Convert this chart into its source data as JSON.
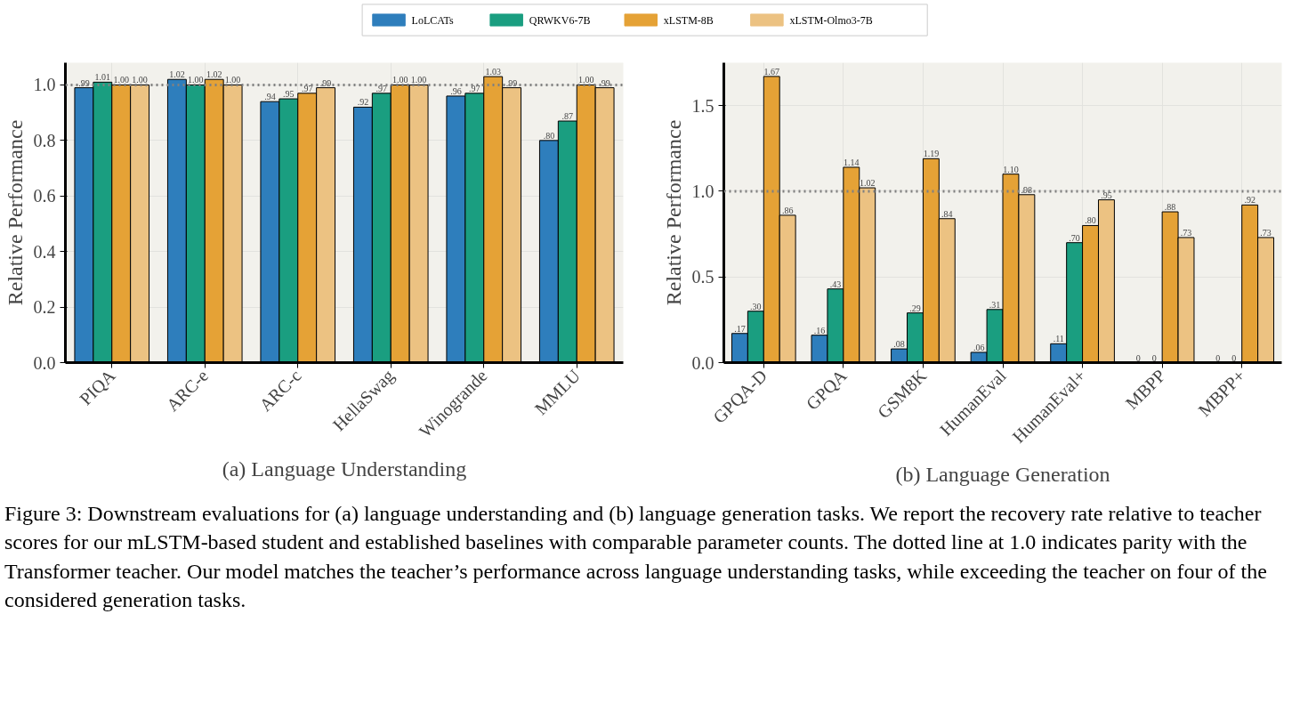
{
  "chart_data": [
    {
      "type": "bar",
      "title": "(a) Language Understanding",
      "ylabel": "Relative Performance",
      "categories": [
        "PIQA",
        "ARC-e",
        "ARC-c",
        "HellaSwag",
        "Winogrande",
        "MMLU"
      ],
      "series": [
        {
          "name": "LoLCATs",
          "color": "#2e7ebc",
          "values": [
            0.99,
            1.02,
            0.94,
            0.92,
            0.96,
            0.8
          ],
          "value_labels": [
            ".99",
            "1.02",
            ".94",
            ".92",
            ".96",
            ".80"
          ]
        },
        {
          "name": "QRWKV6-7B",
          "color": "#1a9e80",
          "values": [
            1.01,
            1.0,
            0.95,
            0.97,
            0.97,
            0.87
          ],
          "value_labels": [
            "1.01",
            "1.00",
            ".95",
            ".97",
            ".97",
            ".87"
          ]
        },
        {
          "name": "xLSTM-8B",
          "color": "#e5a236",
          "values": [
            1.0,
            1.02,
            0.97,
            1.0,
            1.03,
            1.0
          ],
          "value_labels": [
            "1.00",
            "1.02",
            ".97",
            "1.00",
            "1.03",
            "1.00"
          ]
        },
        {
          "name": "xLSTM-Olmo3-7B",
          "color": "#ecc282",
          "values": [
            1.0,
            1.0,
            0.99,
            1.0,
            0.99,
            0.99
          ],
          "value_labels": [
            "1.00",
            "1.00",
            ".99",
            "1.00",
            ".99",
            ".99"
          ]
        }
      ],
      "ylim": [
        0,
        1.08
      ],
      "yticks": [
        {
          "value": 0,
          "label": "0.0"
        },
        {
          "value": 0.2,
          "label": "0.2"
        },
        {
          "value": 0.4,
          "label": "0.4"
        },
        {
          "value": 0.6,
          "label": "0.6"
        },
        {
          "value": 0.8,
          "label": "0.8"
        },
        {
          "value": 1,
          "label": "1.0"
        }
      ],
      "ref_lines": [
        {
          "axis": "y",
          "value": 1,
          "color": "#808080",
          "line_style": "dotted"
        }
      ],
      "grid": true,
      "legend": "top"
    },
    {
      "type": "bar",
      "title": "(b) Language Generation",
      "ylabel": "Relative Performance",
      "categories": [
        "GPQA-D",
        "GPQA",
        "GSM8K",
        "HumanEval",
        "HumanEval+",
        "MBPP",
        "MBPP+"
      ],
      "series": [
        {
          "color": "#2e7ebc",
          "values": [
            0.17,
            0.16,
            0.08,
            0.06,
            0.11,
            0,
            0
          ],
          "value_labels": [
            ".17",
            ".16",
            ".08",
            ".06",
            ".11",
            "0",
            "0"
          ]
        },
        {
          "color": "#1a9e80",
          "values": [
            0.3,
            0.43,
            0.29,
            0.31,
            0.7,
            0,
            0
          ],
          "value_labels": [
            ".30",
            ".43",
            ".29",
            ".31",
            ".70",
            "0",
            "0"
          ]
        },
        {
          "color": "#e5a236",
          "values": [
            1.67,
            1.14,
            1.19,
            1.1,
            0.8,
            0.88,
            0.92
          ],
          "value_labels": [
            "1.67",
            "1.14",
            "1.19",
            "1.10",
            ".80",
            ".88",
            ".92"
          ]
        },
        {
          "color": "#ecc282",
          "values": [
            0.86,
            1.02,
            0.84,
            0.98,
            0.95,
            0.73,
            0.73
          ],
          "value_labels": [
            ".86",
            "1.02",
            ".84",
            ".98",
            ".95",
            ".73",
            ".73"
          ]
        }
      ],
      "ylim": [
        0,
        1.75
      ],
      "yticks": [
        {
          "value": 0,
          "label": "0.0"
        },
        {
          "value": 0.5,
          "label": "0.5"
        },
        {
          "value": 1,
          "label": "1.0"
        },
        {
          "value": 1.5,
          "label": "1.5"
        }
      ],
      "ref_lines": [
        {
          "axis": "y",
          "value": 1,
          "color": "#808080",
          "line_style": "dotted"
        }
      ],
      "grid": true,
      "annotations": [
        "Figure 3: Downstream evaluations for (a) language understanding and (b) language generation tasks. We report the recovery rate relative to teacher scores for our mLSTM-based student and established baselines with comparable parameter counts. The dotted line at 1.0 indicates parity with the Transformer teacher. Our model matches the teacher’s performance across language understanding tasks, while exceeding the teacher on four of the considered generation tasks."
      ]
    }
  ]
}
